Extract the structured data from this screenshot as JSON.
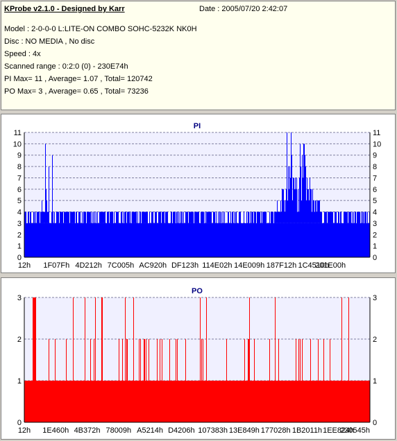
{
  "header": {
    "app_title": "KProbe v2.1.0 - Designed by Karr",
    "date": "Date : 2005/07/20 2:42:07",
    "lines": [
      "Model : 2-0-0-0 L:LITE-ON COMBO SOHC-5232K NK0H",
      "Disc : NO MEDIA , No disc",
      "Speed : 4x",
      "Scanned range : 0:2:0 (0) - 230E74h",
      "PI Max= 11 , Average= 1.07 , Total= 120742",
      "PO Max= 3 , Average= 0.65 , Total= 73236"
    ]
  },
  "colors": {
    "pi": "#0000ff",
    "po": "#ff0000",
    "title": "#000080"
  },
  "chart_data": [
    {
      "type": "bar",
      "title": "PI",
      "ylim": [
        0,
        11
      ],
      "yticks": [
        0,
        1,
        2,
        3,
        4,
        5,
        6,
        7,
        8,
        9,
        10,
        11
      ],
      "xtick_labels": [
        "12h",
        "1F07Fh",
        "4D212h",
        "7C005h",
        "AC920h",
        "DF123h",
        "114E02h",
        "14E009h",
        "187F12h",
        "1C4510h",
        "201E00h"
      ],
      "series": [
        {
          "color": "#0000ff",
          "base_level": 3,
          "typical_peak": 4,
          "profile": [
            [
              0,
              4
            ],
            [
              10,
              4
            ],
            [
              20,
              5
            ],
            [
              30,
              10
            ],
            [
              40,
              4
            ],
            [
              100,
              4
            ],
            [
              200,
              4
            ],
            [
              260,
              3
            ],
            [
              330,
              4
            ],
            [
              363,
              5
            ],
            [
              370,
              6
            ],
            [
              378,
              11
            ],
            [
              385,
              8
            ],
            [
              395,
              10
            ],
            [
              405,
              7
            ],
            [
              415,
              5
            ],
            [
              425,
              4
            ],
            [
              495,
              5
            ]
          ]
        }
      ]
    },
    {
      "type": "bar",
      "title": "PO",
      "ylim": [
        0,
        3
      ],
      "yticks": [
        0,
        1,
        2,
        3
      ],
      "xtick_labels": [
        "12h",
        "1E460h",
        "4B372h",
        "78009h",
        "A5214h",
        "D4206h",
        "107383h",
        "13E849h",
        "177028h",
        "1B2011h",
        "1EE824h",
        "230545h"
      ],
      "series": [
        {
          "color": "#ff0000",
          "base_level": 1,
          "typical_peak": 2
        }
      ]
    }
  ]
}
